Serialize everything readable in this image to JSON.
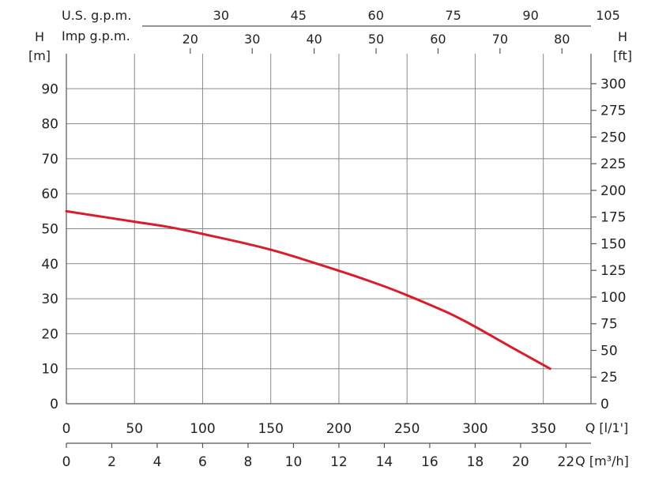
{
  "chart_data": {
    "type": "line",
    "title": "",
    "colors": {
      "curve": "#d81e2c"
    },
    "grid": true,
    "left_axis": {
      "label_top": "H",
      "label_unit": "[m]",
      "ticks": [
        0,
        10,
        20,
        30,
        40,
        50,
        60,
        70,
        80,
        90
      ],
      "range": [
        0,
        100
      ]
    },
    "right_axis": {
      "label_top": "H",
      "label_unit": "[ft]",
      "ticks": [
        0,
        25,
        50,
        75,
        100,
        125,
        150,
        175,
        200,
        225,
        250,
        275,
        300
      ]
    },
    "x_axis": {
      "label": "Q [l/1']",
      "ticks": [
        0,
        50,
        100,
        150,
        200,
        250,
        300,
        350
      ],
      "range": [
        0,
        385
      ]
    },
    "x_axis_m3h": {
      "label": "Q [m³/h]",
      "ticks": [
        0,
        2,
        4,
        6,
        8,
        10,
        12,
        14,
        16,
        18,
        20,
        22
      ]
    },
    "top_axis_us": {
      "label": "U.S. g.p.m.",
      "ticks": [
        30,
        45,
        60,
        75,
        90,
        105
      ]
    },
    "top_axis_imp": {
      "label": "Imp g.p.m.",
      "ticks": [
        20,
        30,
        40,
        50,
        60,
        70,
        80
      ]
    },
    "series": [
      {
        "x": [
          0,
          50,
          75,
          100,
          150,
          200,
          230,
          250,
          280,
          300,
          325,
          355
        ],
        "y": [
          55,
          52,
          50.5,
          48.5,
          44,
          38,
          34,
          31,
          26,
          22,
          16.5,
          10
        ]
      }
    ]
  }
}
